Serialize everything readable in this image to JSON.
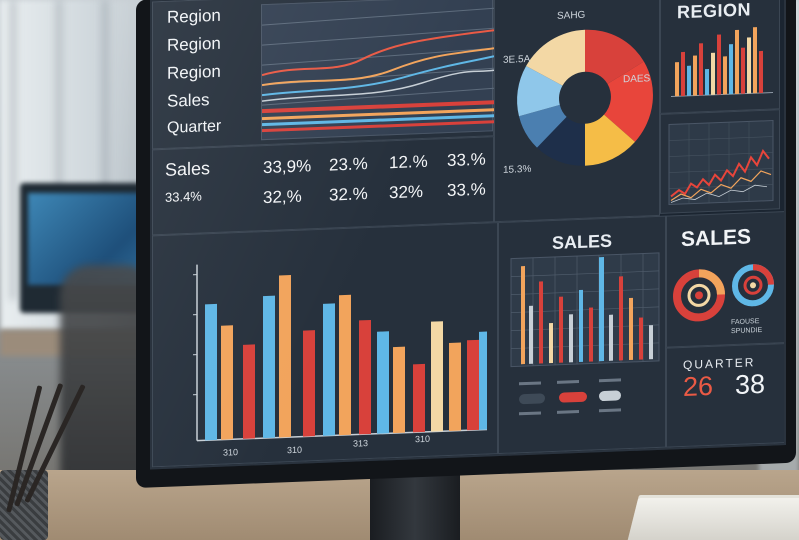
{
  "top_left_labels": [
    "Region",
    "Region",
    "Region",
    "Sales",
    "Quarter"
  ],
  "stats": {
    "row1_label": "Sales",
    "row1_values": [
      "33,9%",
      "23.%",
      "12.%",
      "33.%"
    ],
    "row2_label": "33.4%",
    "row2_values": [
      "32,%",
      "32.%",
      "32%",
      "33.%"
    ]
  },
  "donut_labels": [
    "SAHG",
    "3E.5A",
    "DAES",
    "15.3%"
  ],
  "region_title": "REGION",
  "sales_chart_title": "SALES",
  "sales_gauge_title": "SALES",
  "gauge_caption": [
    "FAOUSE",
    "SPUNDIE"
  ],
  "quarter_title": "QUARTER",
  "quarter_values": [
    "26",
    "38"
  ],
  "bar_axis_labels": [
    "310",
    "310",
    "313",
    "310"
  ],
  "colors": {
    "blue": "#5fb7e6",
    "orange": "#f2a45c",
    "red": "#d8413b",
    "cream": "#f3d8a5",
    "yellow": "#f5bd47",
    "navy": "#1e2f4a",
    "steel": "#4b7fb0"
  }
}
